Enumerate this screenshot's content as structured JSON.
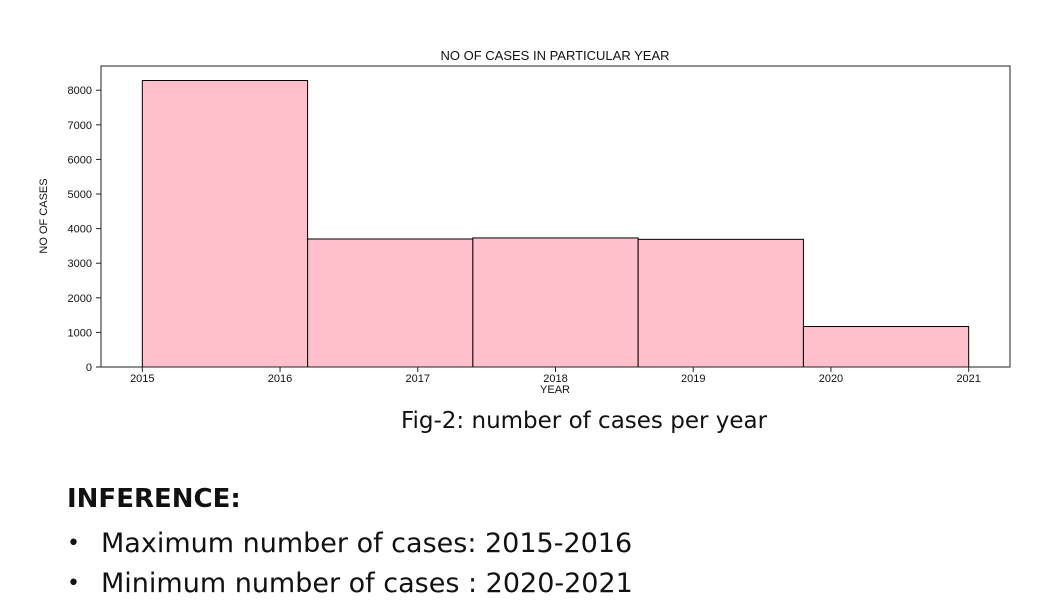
{
  "chart_data": {
    "type": "bar",
    "title": "NO OF CASES IN PARTICULAR YEAR",
    "xlabel": "YEAR",
    "ylabel": "NO OF CASES",
    "xlim": [
      2014.7,
      2021.3
    ],
    "ylim": [
      0,
      8700
    ],
    "x_ticks": [
      "2015",
      "2016",
      "2017",
      "2018",
      "2019",
      "2020",
      "2021"
    ],
    "y_ticks": [
      0,
      1000,
      2000,
      3000,
      4000,
      5000,
      6000,
      7000,
      8000
    ],
    "bins": [
      {
        "start": 2015.0,
        "end": 2016.2,
        "value": 8280
      },
      {
        "start": 2016.2,
        "end": 2017.4,
        "value": 3700
      },
      {
        "start": 2017.4,
        "end": 2018.6,
        "value": 3730
      },
      {
        "start": 2018.6,
        "end": 2019.8,
        "value": 3690
      },
      {
        "start": 2019.8,
        "end": 2021.0,
        "value": 1170
      }
    ],
    "bar_color": "#ffc0cb",
    "edge_color": "#000000",
    "grid": false
  },
  "caption": "Fig-2: number of cases per year",
  "inference": {
    "heading": "INFERENCE:",
    "items": [
      "Maximum number of cases: 2015-2016",
      "Minimum number of cases : 2020-2021"
    ]
  }
}
